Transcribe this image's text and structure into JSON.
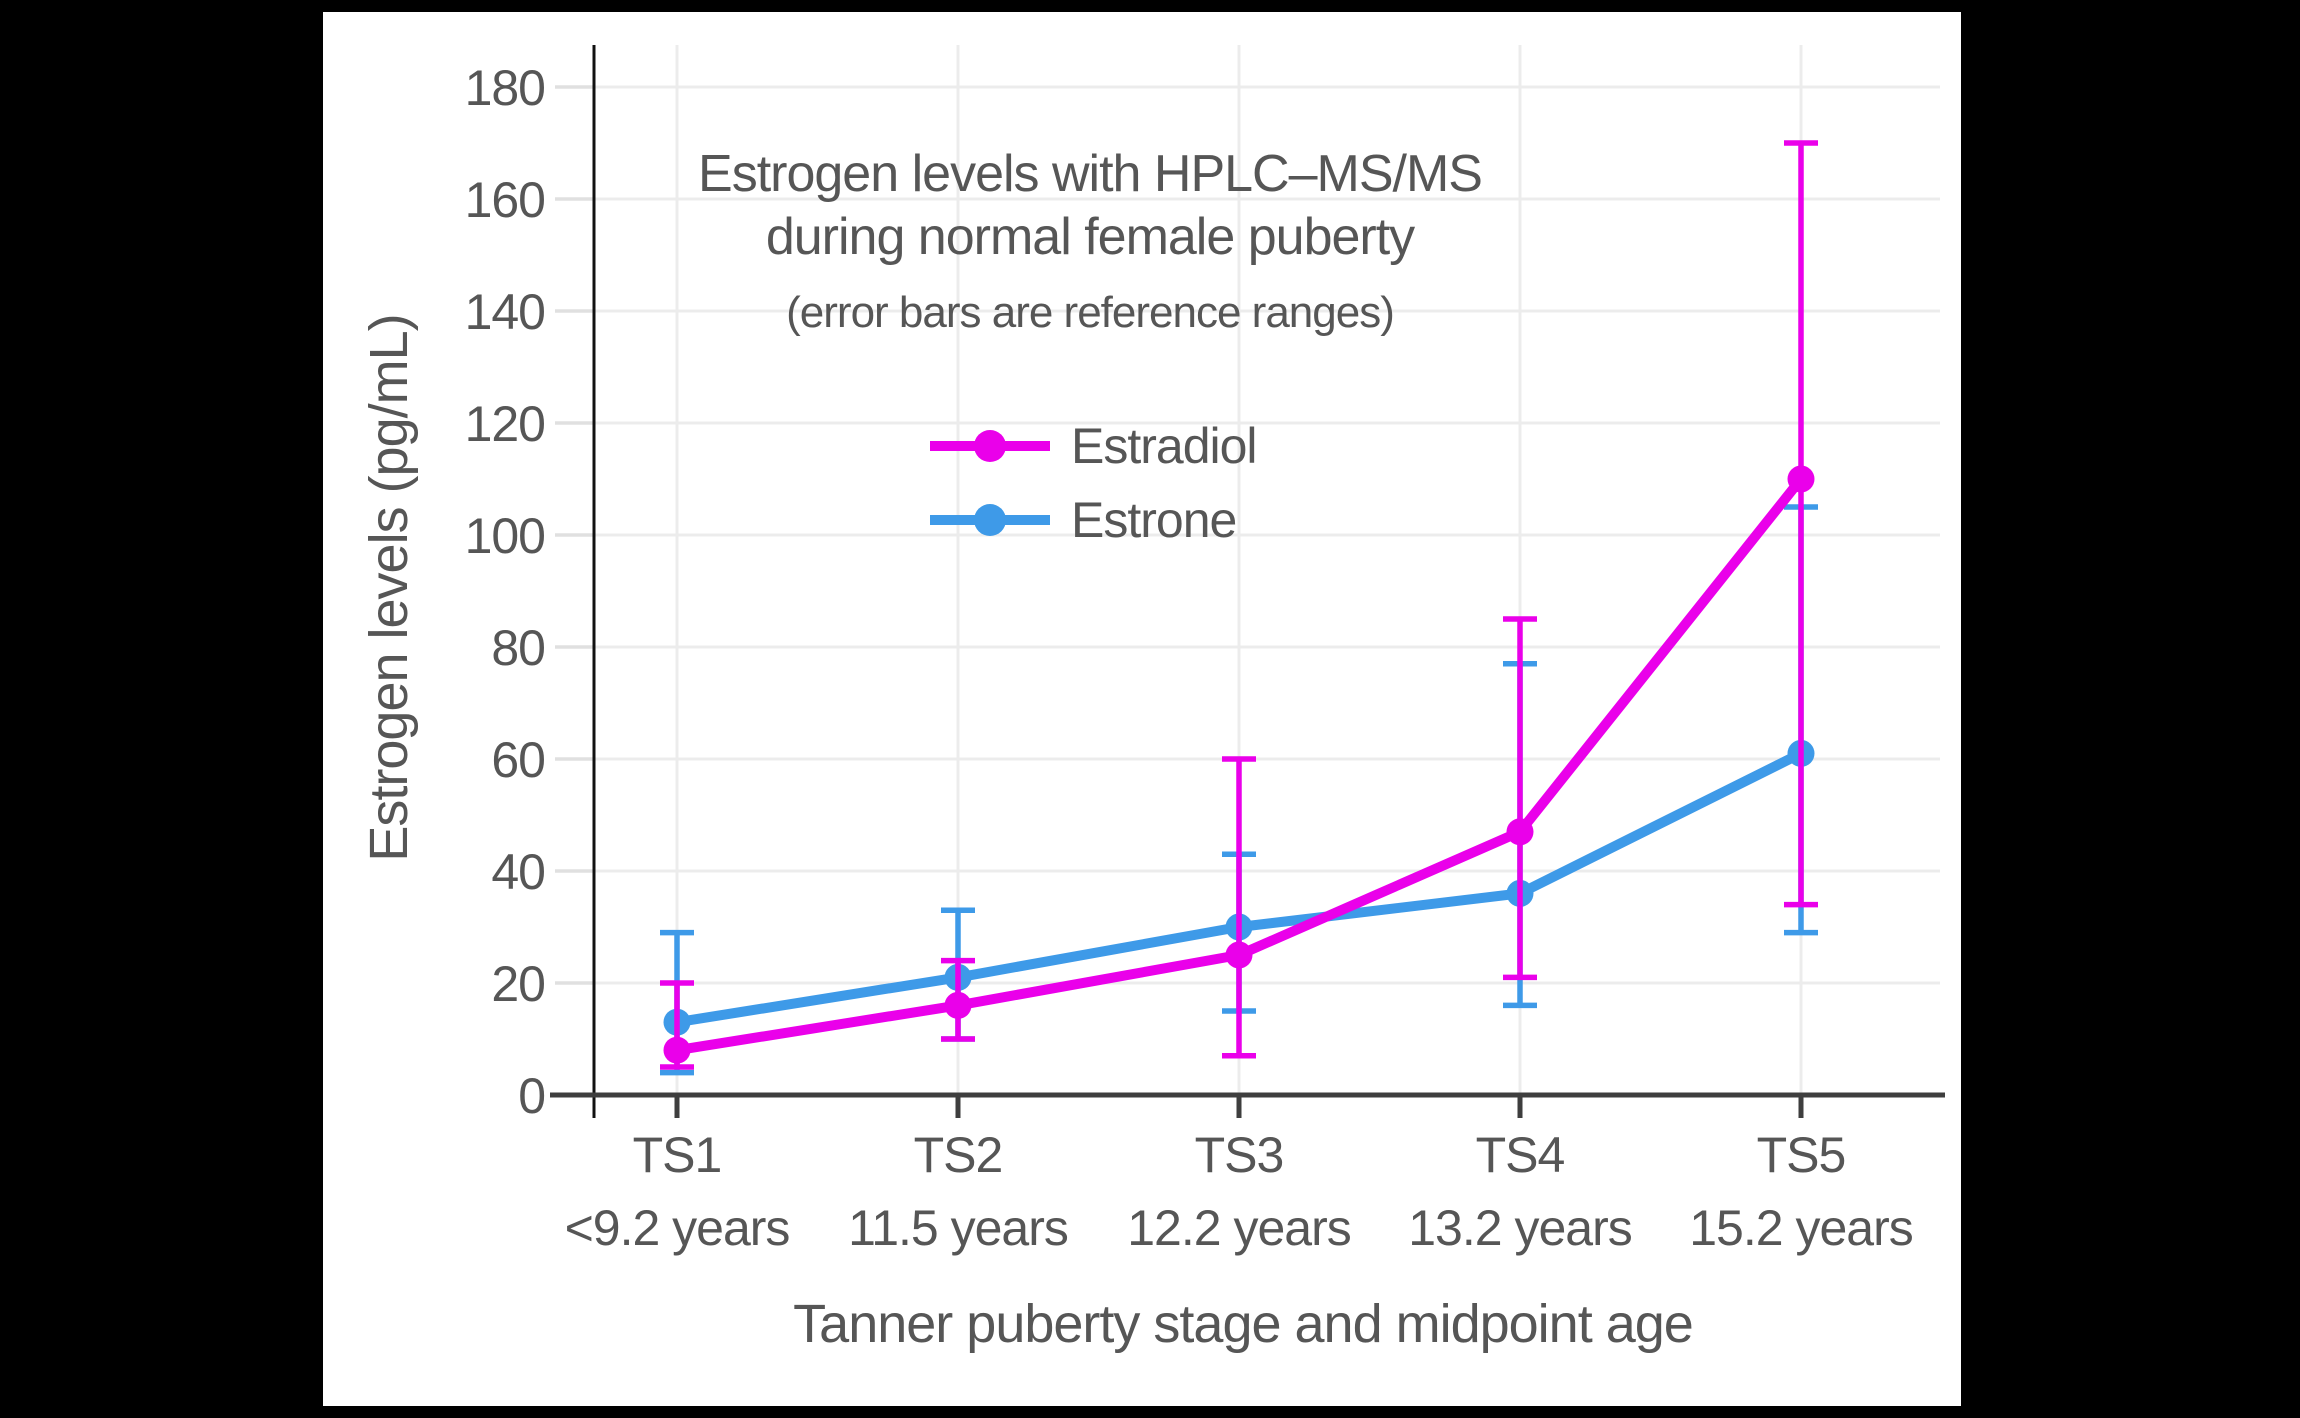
{
  "page": {
    "background": "#000000",
    "panel_background": "#ffffff"
  },
  "chart_data": {
    "type": "line",
    "title_line1": "Estrogen levels with HPLC–MS/MS",
    "title_line2": "during normal female puberty",
    "subtitle": "(error bars are reference ranges)",
    "xlabel": "Tanner puberty stage and midpoint age",
    "ylabel": "Estrogen levels (pg/mL)",
    "ylim": [
      0,
      180
    ],
    "yticks": [
      0,
      20,
      40,
      60,
      80,
      100,
      120,
      140,
      160,
      180
    ],
    "grid": true,
    "legend_position": "inside-top-center",
    "categories": [
      {
        "stage": "TS1",
        "age": "<9.2 years"
      },
      {
        "stage": "TS2",
        "age": "11.5 years"
      },
      {
        "stage": "TS3",
        "age": "12.2 years"
      },
      {
        "stage": "TS4",
        "age": "13.2 years"
      },
      {
        "stage": "TS5",
        "age": "15.2 years"
      }
    ],
    "series": [
      {
        "name": "Estradiol",
        "color": "#EA00EA",
        "values": [
          8,
          16,
          25,
          47,
          110
        ],
        "range_low": [
          5,
          10,
          7,
          21,
          34
        ],
        "range_high": [
          20,
          24,
          60,
          85,
          170
        ]
      },
      {
        "name": "Estrone",
        "color": "#3E9AE8",
        "values": [
          13,
          21,
          30,
          36,
          61
        ],
        "range_low": [
          4,
          10,
          15,
          16,
          29
        ],
        "range_high": [
          29,
          33,
          43,
          77,
          105
        ]
      }
    ]
  },
  "style": {
    "text_color": "#565656",
    "grid_color": "#ECECEC",
    "x_axis_color": "#3E3E3E",
    "y_axis_color": "#111111",
    "y_tick_color": "#E0E0E0"
  }
}
